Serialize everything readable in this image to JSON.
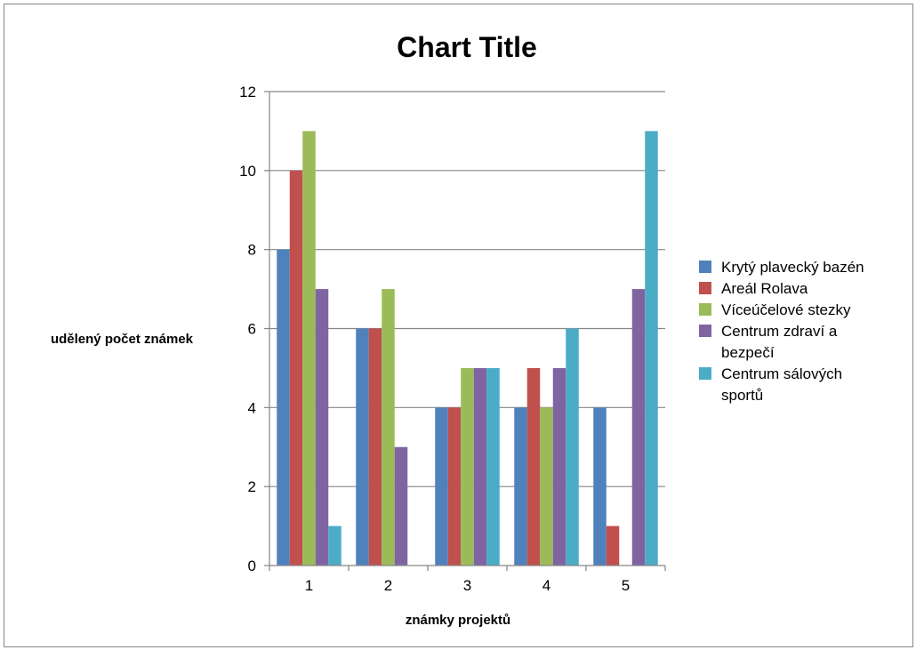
{
  "chart_data": {
    "type": "bar",
    "title": "Chart Title",
    "xlabel": "známky projektů",
    "ylabel": "udělený počet známek",
    "categories": [
      "1",
      "2",
      "3",
      "4",
      "5"
    ],
    "ylim": [
      0,
      12
    ],
    "yticks": [
      0,
      2,
      4,
      6,
      8,
      10,
      12
    ],
    "grid": true,
    "legend_position": "right",
    "series": [
      {
        "name": "Krytý plavecký bazén",
        "color": "#4F81BD",
        "values": [
          8,
          6,
          4,
          4,
          4
        ]
      },
      {
        "name": "Areál Rolava",
        "color": "#C0504D",
        "values": [
          10,
          6,
          4,
          5,
          1
        ]
      },
      {
        "name": "Víceúčelové stezky",
        "color": "#9BBB59",
        "values": [
          11,
          7,
          5,
          4,
          0
        ]
      },
      {
        "name": "Centrum zdraví a bezpečí",
        "color": "#8064A2",
        "values": [
          7,
          3,
          5,
          5,
          7
        ]
      },
      {
        "name": "Centrum sálových sportů",
        "color": "#4BACC6",
        "values": [
          1,
          0,
          5,
          6,
          11
        ]
      }
    ]
  }
}
